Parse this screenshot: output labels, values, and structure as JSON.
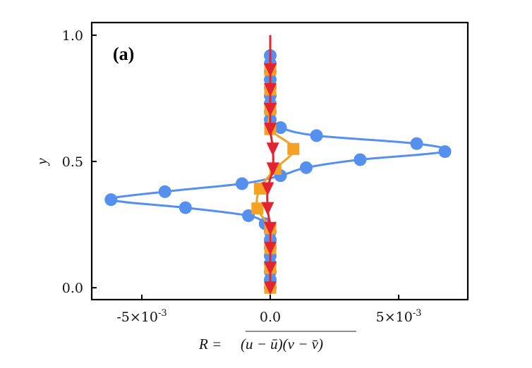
{
  "chart_data": {
    "type": "line",
    "panel_label": "(a)",
    "xlabel": {
      "lhs": "R =",
      "overlined": "(u − ū)(v − v̄)"
    },
    "ylabel": "y",
    "xlim": [
      -0.00695,
      0.00769
    ],
    "ylim": [
      -0.047,
      1.05
    ],
    "xticks": [
      {
        "value": -0.005,
        "label": "-5×10",
        "exp": "-3"
      },
      {
        "value": 0,
        "label": "0.0",
        "exp": ""
      },
      {
        "value": 0.005,
        "label": "5×10",
        "exp": "-3"
      }
    ],
    "yticks": [
      {
        "value": 0,
        "label": "0.0"
      },
      {
        "value": 0.5,
        "label": "0.5"
      },
      {
        "value": 1.0,
        "label": "1.0"
      }
    ],
    "grid": false,
    "series": [
      {
        "color": "#5590ee",
        "marker": "circle",
        "y": [
          0,
          0.0317,
          0.0634,
          0.0951,
          0.1268,
          0.1585,
          0.1902,
          0.2219,
          0.2536,
          0.2853,
          0.317,
          0.3487,
          0.3804,
          0.4121,
          0.4438,
          0.4755,
          0.5072,
          0.5389,
          0.5706,
          0.6023,
          0.634,
          0.6657,
          0.6974,
          0.7291,
          0.7608,
          0.7925,
          0.8242,
          0.8559,
          0.8876,
          0.9193
        ],
        "x": [
          0,
          0,
          0,
          0,
          0,
          0,
          0,
          0,
          -0.0002,
          -0.00085,
          -0.0033,
          -0.0062,
          -0.0041,
          -0.0011,
          0.0004,
          0.0014,
          0.0035,
          0.0068,
          0.0057,
          0.0018,
          0.0004,
          0,
          0,
          0,
          0,
          0,
          0,
          0,
          0,
          0
        ]
      },
      {
        "color": "#f5a124",
        "marker": "square",
        "y": [
          0,
          0.0785,
          0.157,
          0.2355,
          0.314,
          0.3925,
          0.471,
          0.5495,
          0.628,
          0.7065,
          0.785,
          0.8635
        ],
        "x": [
          0,
          0,
          0,
          0,
          -0.0005,
          -0.0004,
          0.0002,
          0.0009,
          0,
          0,
          0,
          0
        ]
      },
      {
        "color": "#e3232f",
        "marker": "triangle-down",
        "y": [
          0,
          0.0785,
          0.157,
          0.2355,
          0.314,
          0.3925,
          0.471,
          0.5495,
          0.628,
          0.7065,
          0.785,
          0.8635
        ],
        "x": [
          0,
          0,
          0,
          0,
          -0.0001,
          -0.0001,
          0.0001,
          0.0001,
          0,
          0,
          0,
          0
        ],
        "line_extends_to_y": 1.0
      }
    ]
  }
}
